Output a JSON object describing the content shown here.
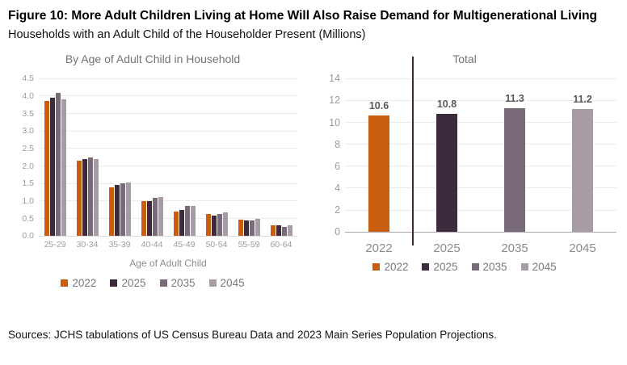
{
  "page": {
    "title": "Figure 10: More Adult Children Living at Home Will Also Raise Demand for Multigenerational Living",
    "subtitle": "Households with an Adult Child of the Householder Present (Millions)",
    "source": "Sources: JCHS tabulations of US Census Bureau Data and 2023 Main Series Population Projections."
  },
  "colors": {
    "y2022": "#c95f0e",
    "y2025": "#3d2b3d",
    "y2035": "#796a78",
    "y2045": "#a79ca5",
    "axis_text": "#9b9b9b",
    "grid": "#ececec",
    "data_label": "#595959",
    "divider": "#3d2b3d"
  },
  "chart_data": [
    {
      "type": "bar",
      "title": "By Age of Adult Child in Household",
      "xlabel": "Age of Adult Child",
      "categories": [
        "25-29",
        "30-34",
        "35-39",
        "40-44",
        "45-49",
        "50-54",
        "55-59",
        "60-64"
      ],
      "series": [
        {
          "name": "2022",
          "color": "#c95f0e",
          "values": [
            3.85,
            2.15,
            1.4,
            1.0,
            0.7,
            0.62,
            0.47,
            0.31
          ]
        },
        {
          "name": "2025",
          "color": "#3d2b3d",
          "values": [
            3.95,
            2.2,
            1.45,
            1.0,
            0.75,
            0.58,
            0.45,
            0.3
          ]
        },
        {
          "name": "2035",
          "color": "#796a78",
          "values": [
            4.1,
            2.25,
            1.5,
            1.1,
            0.85,
            0.63,
            0.44,
            0.27
          ]
        },
        {
          "name": "2045",
          "color": "#a79ca5",
          "values": [
            3.9,
            2.2,
            1.52,
            1.12,
            0.87,
            0.68,
            0.5,
            0.3
          ]
        }
      ],
      "ylim": [
        0,
        4.5
      ],
      "yticks": [
        "0.0",
        "0.5",
        "1.0",
        "1.5",
        "2.0",
        "2.5",
        "3.0",
        "3.5",
        "4.0",
        "4.5"
      ],
      "grid": true,
      "legend": [
        {
          "label": "2022",
          "color": "#c95f0e"
        },
        {
          "label": "2025",
          "color": "#3d2b3d"
        },
        {
          "label": "2035",
          "color": "#796a78"
        },
        {
          "label": "2045",
          "color": "#a79ca5"
        }
      ],
      "legend_position": "bottom"
    },
    {
      "type": "bar",
      "title": "Total",
      "xlabel": "",
      "categories": [
        "2022",
        "2025",
        "2035",
        "2045"
      ],
      "values": [
        10.6,
        10.8,
        11.3,
        11.2
      ],
      "bar_colors": [
        "#c95f0e",
        "#3d2b3d",
        "#796a78",
        "#a79ca5"
      ],
      "data_labels": [
        "10.6",
        "10.8",
        "11.3",
        "11.2"
      ],
      "ylim": [
        0,
        14
      ],
      "yticks": [
        "0",
        "2",
        "4",
        "6",
        "8",
        "10",
        "12",
        "14"
      ],
      "grid": true,
      "divider": {
        "after_category": "2022",
        "color": "#3d2b3d"
      },
      "legend": [
        {
          "label": "2022",
          "color": "#c95f0e"
        },
        {
          "label": "2025",
          "color": "#3d2b3d"
        },
        {
          "label": "2035",
          "color": "#796a78"
        },
        {
          "label": "2045",
          "color": "#a79ca5"
        }
      ],
      "legend_position": "bottom"
    }
  ]
}
